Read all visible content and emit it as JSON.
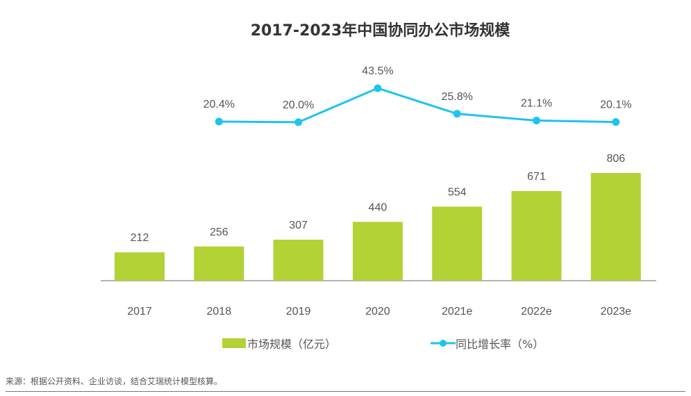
{
  "chart_data": {
    "type": "bar",
    "title": "2017-2023年中国协同办公市场规模",
    "categories": [
      "2017",
      "2018",
      "2019",
      "2020",
      "2021e",
      "2022e",
      "2023e"
    ],
    "series": [
      {
        "name": "市场规模（亿元）",
        "type": "bar",
        "color": "#b2d235",
        "values": [
          212,
          256,
          307,
          440,
          554,
          671,
          806
        ],
        "labels": [
          "212",
          "256",
          "307",
          "440",
          "554",
          "671",
          "806"
        ]
      },
      {
        "name": "同比增长率（%）",
        "type": "line",
        "color": "#1fc3f0",
        "values": [
          null,
          20.4,
          20.0,
          43.5,
          25.8,
          21.1,
          20.1
        ],
        "labels": [
          "",
          "20.4%",
          "20.0%",
          "43.5%",
          "25.8%",
          "21.1%",
          "20.1%"
        ]
      }
    ],
    "legend": "bottom",
    "grid": false
  },
  "source": "来源：根据公开资料、企业访谈，结合艾瑞统计模型核算。"
}
